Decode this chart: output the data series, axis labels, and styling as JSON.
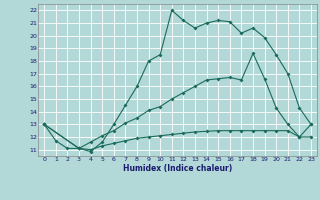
{
  "xlabel": "Humidex (Indice chaleur)",
  "background_color": "#b2d8d8",
  "grid_color": "#ffffff",
  "line_color": "#1a6b5a",
  "xlim": [
    -0.5,
    23.5
  ],
  "ylim": [
    10.5,
    22.5
  ],
  "xticks": [
    0,
    1,
    2,
    3,
    4,
    5,
    6,
    7,
    8,
    9,
    10,
    11,
    12,
    13,
    14,
    15,
    16,
    17,
    18,
    19,
    20,
    21,
    22,
    23
  ],
  "yticks": [
    11,
    12,
    13,
    14,
    15,
    16,
    17,
    18,
    19,
    20,
    21,
    22
  ],
  "line1_x": [
    0,
    1,
    2,
    3,
    4,
    5,
    6,
    7,
    8,
    9,
    10,
    11,
    12,
    13,
    14,
    15,
    16,
    17,
    18,
    19,
    20,
    21,
    22,
    23
  ],
  "line1_y": [
    13.0,
    11.7,
    11.1,
    11.1,
    10.85,
    11.6,
    13.0,
    14.5,
    16.0,
    18.0,
    18.5,
    22.0,
    21.2,
    20.6,
    21.0,
    21.2,
    21.1,
    20.2,
    20.6,
    19.85,
    18.5,
    17.0,
    14.3,
    13.0
  ],
  "line2_x": [
    0,
    3,
    4,
    5,
    6,
    7,
    8,
    9,
    10,
    11,
    12,
    13,
    14,
    15,
    16,
    17,
    18,
    19,
    20,
    21,
    22,
    23
  ],
  "line2_y": [
    13.0,
    11.1,
    11.6,
    12.1,
    12.5,
    13.1,
    13.5,
    14.1,
    14.4,
    15.0,
    15.5,
    16.0,
    16.5,
    16.6,
    16.7,
    16.5,
    18.6,
    16.6,
    14.3,
    13.0,
    12.0,
    13.0
  ],
  "line3_x": [
    0,
    3,
    4,
    5,
    6,
    7,
    8,
    9,
    10,
    11,
    12,
    13,
    14,
    15,
    16,
    17,
    18,
    19,
    20,
    21,
    22,
    23
  ],
  "line3_y": [
    13.0,
    11.1,
    11.0,
    11.3,
    11.5,
    11.7,
    11.9,
    12.0,
    12.1,
    12.2,
    12.3,
    12.4,
    12.45,
    12.5,
    12.5,
    12.5,
    12.5,
    12.5,
    12.5,
    12.5,
    12.0,
    12.0
  ]
}
